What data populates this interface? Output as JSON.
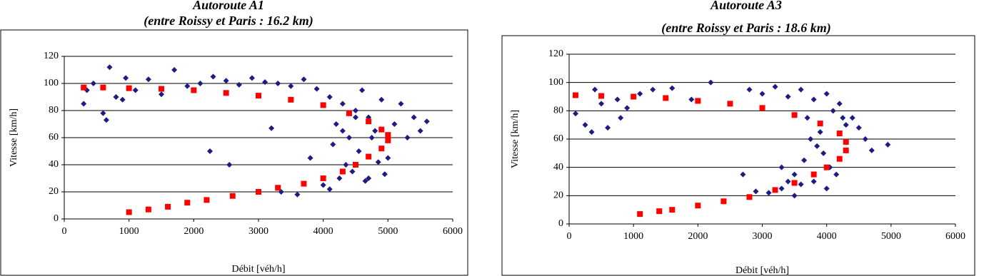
{
  "chart_data": [
    {
      "type": "scatter",
      "title": "Autoroute A1",
      "subtitle": "(entre  Roissy et Paris : 16.2 km)",
      "x_label": "Débit [véh/h]",
      "y_label": "Vitesse [km/h]",
      "xlim": [
        0,
        6000
      ],
      "ylim": [
        0,
        120
      ],
      "xticks": [
        0,
        1000,
        2000,
        3000,
        4000,
        5000,
        6000
      ],
      "yticks": [
        0,
        20,
        40,
        60,
        80,
        100,
        120
      ],
      "grid": true,
      "series": [
        {
          "color": "#1c1c82",
          "marker": "diamond",
          "x": [
            300,
            450,
            600,
            700,
            800,
            950,
            1100,
            1300,
            1500,
            1700,
            1900,
            2100,
            2300,
            2500,
            2700,
            2900,
            3100,
            3300,
            3500,
            3700,
            3900,
            4100,
            4200,
            4300,
            4400,
            4500,
            4600,
            4700,
            4800,
            4900,
            5000,
            5100,
            5200,
            5300,
            5400,
            5500,
            5600,
            350,
            650,
            900,
            2250,
            2550,
            3200,
            3350,
            3600,
            3800,
            4000,
            4150,
            4250,
            4350,
            4450,
            4550,
            4650,
            4750,
            4850,
            4950,
            4100,
            4300,
            4500,
            4700
          ],
          "values": [
            85,
            100,
            78,
            112,
            90,
            104,
            95,
            103,
            92,
            110,
            98,
            100,
            105,
            102,
            99,
            104,
            101,
            100,
            98,
            103,
            96,
            90,
            70,
            85,
            60,
            80,
            95,
            75,
            65,
            88,
            45,
            70,
            85,
            60,
            75,
            65,
            72,
            95,
            73,
            88,
            50,
            40,
            67,
            20,
            18,
            45,
            25,
            55,
            30,
            40,
            35,
            50,
            28,
            60,
            42,
            33,
            22,
            65,
            75,
            30
          ]
        },
        {
          "color": "#ff0000",
          "marker": "square",
          "x": [
            300,
            600,
            1000,
            1500,
            2000,
            2500,
            3000,
            3500,
            4000,
            4400,
            4700,
            4900,
            5000,
            5000,
            4900,
            4700,
            4500,
            4300,
            4000,
            3700,
            3300,
            3000,
            2600,
            2200,
            1900,
            1600,
            1300,
            1000
          ],
          "values": [
            97,
            97,
            96.5,
            96,
            95,
            93,
            91,
            88,
            84,
            78,
            72,
            66,
            62,
            58,
            52,
            46,
            40,
            35,
            30,
            26,
            23,
            20,
            17,
            14,
            12,
            9,
            7,
            5
          ]
        }
      ]
    },
    {
      "type": "scatter",
      "title": "Autoroute A3",
      "subtitle": "(entre  Roissy et Paris : 18.6 km)",
      "x_label": "Débit [véh/h]",
      "y_label": "Vitesse [km/h]",
      "xlim": [
        0,
        6000
      ],
      "ylim": [
        0,
        120
      ],
      "xticks": [
        0,
        1000,
        2000,
        3000,
        4000,
        5000,
        6000
      ],
      "yticks": [
        0,
        20,
        40,
        60,
        80,
        100,
        120
      ],
      "grid": true,
      "series": [
        {
          "color": "#1c1c82",
          "marker": "diamond",
          "x": [
            100,
            250,
            400,
            500,
            600,
            750,
            900,
            1100,
            1300,
            1600,
            1900,
            2200,
            2500,
            2800,
            3000,
            3200,
            3400,
            3600,
            3700,
            3800,
            3900,
            4000,
            4100,
            4200,
            4300,
            4400,
            4500,
            4600,
            4700,
            4950,
            3100,
            3300,
            3500,
            3650,
            3750,
            3850,
            3950,
            4050,
            4150,
            4250,
            3400,
            3600,
            3800,
            4000,
            3300,
            3500,
            2700,
            2900,
            350,
            800
          ],
          "values": [
            78,
            70,
            95,
            85,
            68,
            88,
            82,
            92,
            95,
            96,
            88,
            100,
            85,
            95,
            92,
            97,
            90,
            95,
            75,
            88,
            65,
            92,
            80,
            85,
            70,
            75,
            68,
            60,
            52,
            56,
            22,
            25,
            35,
            45,
            60,
            55,
            50,
            40,
            35,
            75,
            30,
            28,
            30,
            25,
            40,
            20,
            35,
            23,
            65,
            75
          ]
        },
        {
          "color": "#ff0000",
          "marker": "square",
          "x": [
            100,
            500,
            1000,
            1500,
            2000,
            2500,
            3000,
            3500,
            3900,
            4200,
            4300,
            4300,
            4200,
            4000,
            3800,
            3500,
            3200,
            2800,
            2400,
            2000,
            1600,
            1400,
            1100
          ],
          "values": [
            91,
            90.5,
            90,
            89,
            87,
            85,
            82,
            77,
            71,
            64,
            58,
            52,
            46,
            40,
            35,
            29,
            24,
            19,
            16,
            13,
            10,
            9,
            7
          ]
        }
      ]
    }
  ]
}
